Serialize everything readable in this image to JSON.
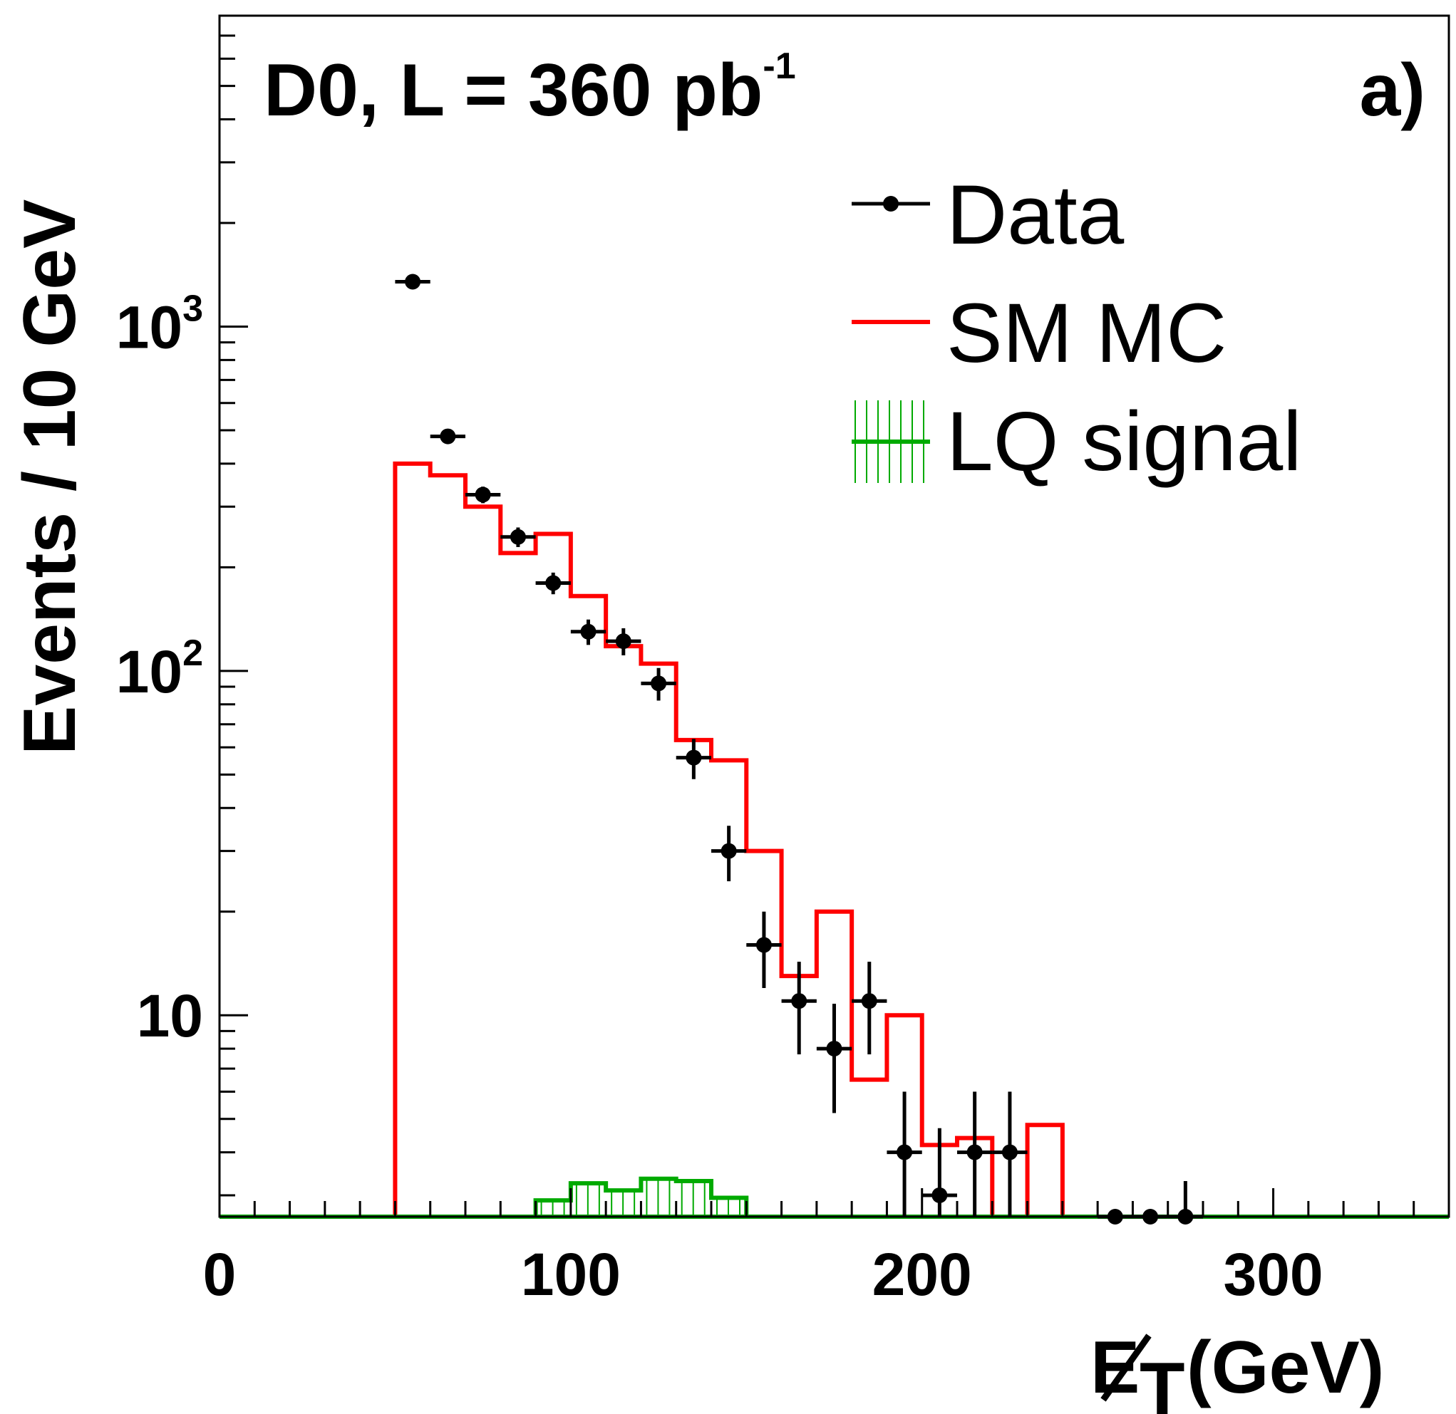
{
  "chart_data": {
    "type": "histogram",
    "log_y": true,
    "xlim": [
      0,
      350
    ],
    "ylim": [
      2.6,
      8000
    ],
    "bin_width": 10,
    "annotation": "D0, L = 360 pb",
    "annotation_exponent": "-1",
    "panel_label": "a)",
    "ylabel": "Events / 10 GeV",
    "xlabel": "E",
    "xlabel_subscript": "T",
    "xlabel_unit": "(GeV)",
    "x_ticks": [
      {
        "value": 0,
        "label": "0"
      },
      {
        "value": 100,
        "label": "100"
      },
      {
        "value": 200,
        "label": "200"
      },
      {
        "value": 300,
        "label": "300"
      }
    ],
    "y_ticks": [
      {
        "value": 10,
        "base": "10",
        "exp": ""
      },
      {
        "value": 100,
        "base": "10",
        "exp": "2"
      },
      {
        "value": 1000,
        "base": "10",
        "exp": "3"
      }
    ],
    "legend": [
      {
        "key": "data",
        "label": "Data",
        "color": "#000000"
      },
      {
        "key": "sm",
        "label": "SM MC",
        "color": "#ff0000"
      },
      {
        "key": "lq",
        "label": "LQ signal",
        "color": "#00aa00"
      }
    ],
    "series": [
      {
        "name": "SM MC",
        "kind": "step",
        "color": "#ff0000",
        "bin_edges": [
          50,
          60,
          70,
          80,
          90,
          100,
          110,
          120,
          130,
          140,
          150,
          160,
          170,
          180,
          190,
          200,
          210,
          220,
          230,
          240
        ],
        "values": [
          400,
          370,
          300,
          220,
          250,
          165,
          118,
          105,
          63,
          55,
          30,
          13,
          20,
          6.5,
          10,
          4.2,
          4.4,
          2.6,
          4.8
        ]
      },
      {
        "name": "LQ signal",
        "kind": "step",
        "color": "#00aa00",
        "bin_edges": [
          90,
          100,
          110,
          120,
          130,
          140,
          150
        ],
        "values": [
          2.9,
          3.25,
          3.1,
          3.35,
          3.3,
          2.95
        ]
      },
      {
        "name": "Data",
        "kind": "points",
        "color": "#000000",
        "points": [
          {
            "x": 55,
            "y": 1350
          },
          {
            "x": 65,
            "y": 480
          },
          {
            "x": 75,
            "y": 325,
            "elo": 18,
            "ehi": 18
          },
          {
            "x": 85,
            "y": 245,
            "elo": 16,
            "ehi": 16
          },
          {
            "x": 95,
            "y": 180,
            "elo": 13,
            "ehi": 13
          },
          {
            "x": 105,
            "y": 130,
            "elo": 11,
            "ehi": 11
          },
          {
            "x": 115,
            "y": 122,
            "elo": 11,
            "ehi": 11
          },
          {
            "x": 125,
            "y": 92,
            "elo": 10,
            "ehi": 10
          },
          {
            "x": 135,
            "y": 56,
            "elo": 7.5,
            "ehi": 7.5
          },
          {
            "x": 145,
            "y": 30,
            "elo": 5.5,
            "ehi": 5.5
          },
          {
            "x": 155,
            "y": 16,
            "elo": 4,
            "ehi": 4
          },
          {
            "x": 165,
            "y": 11,
            "elo": 3.3,
            "ehi": 3.3
          },
          {
            "x": 175,
            "y": 8,
            "elo": 2.8,
            "ehi": 2.8
          },
          {
            "x": 185,
            "y": 11,
            "elo": 3.3,
            "ehi": 3.3
          },
          {
            "x": 195,
            "y": 4,
            "elo": 2,
            "ehi": 2
          },
          {
            "x": 205,
            "y": 3,
            "elo": 1.7,
            "ehi": 1.7
          },
          {
            "x": 215,
            "y": 4,
            "elo": 2,
            "ehi": 2
          },
          {
            "x": 225,
            "y": 4,
            "elo": 2,
            "ehi": 2
          },
          {
            "x": 255,
            "y": 2.6
          },
          {
            "x": 265,
            "y": 2.6
          },
          {
            "x": 275,
            "y": 2.6,
            "elo": 0,
            "ehi": 0.7
          }
        ]
      }
    ]
  }
}
